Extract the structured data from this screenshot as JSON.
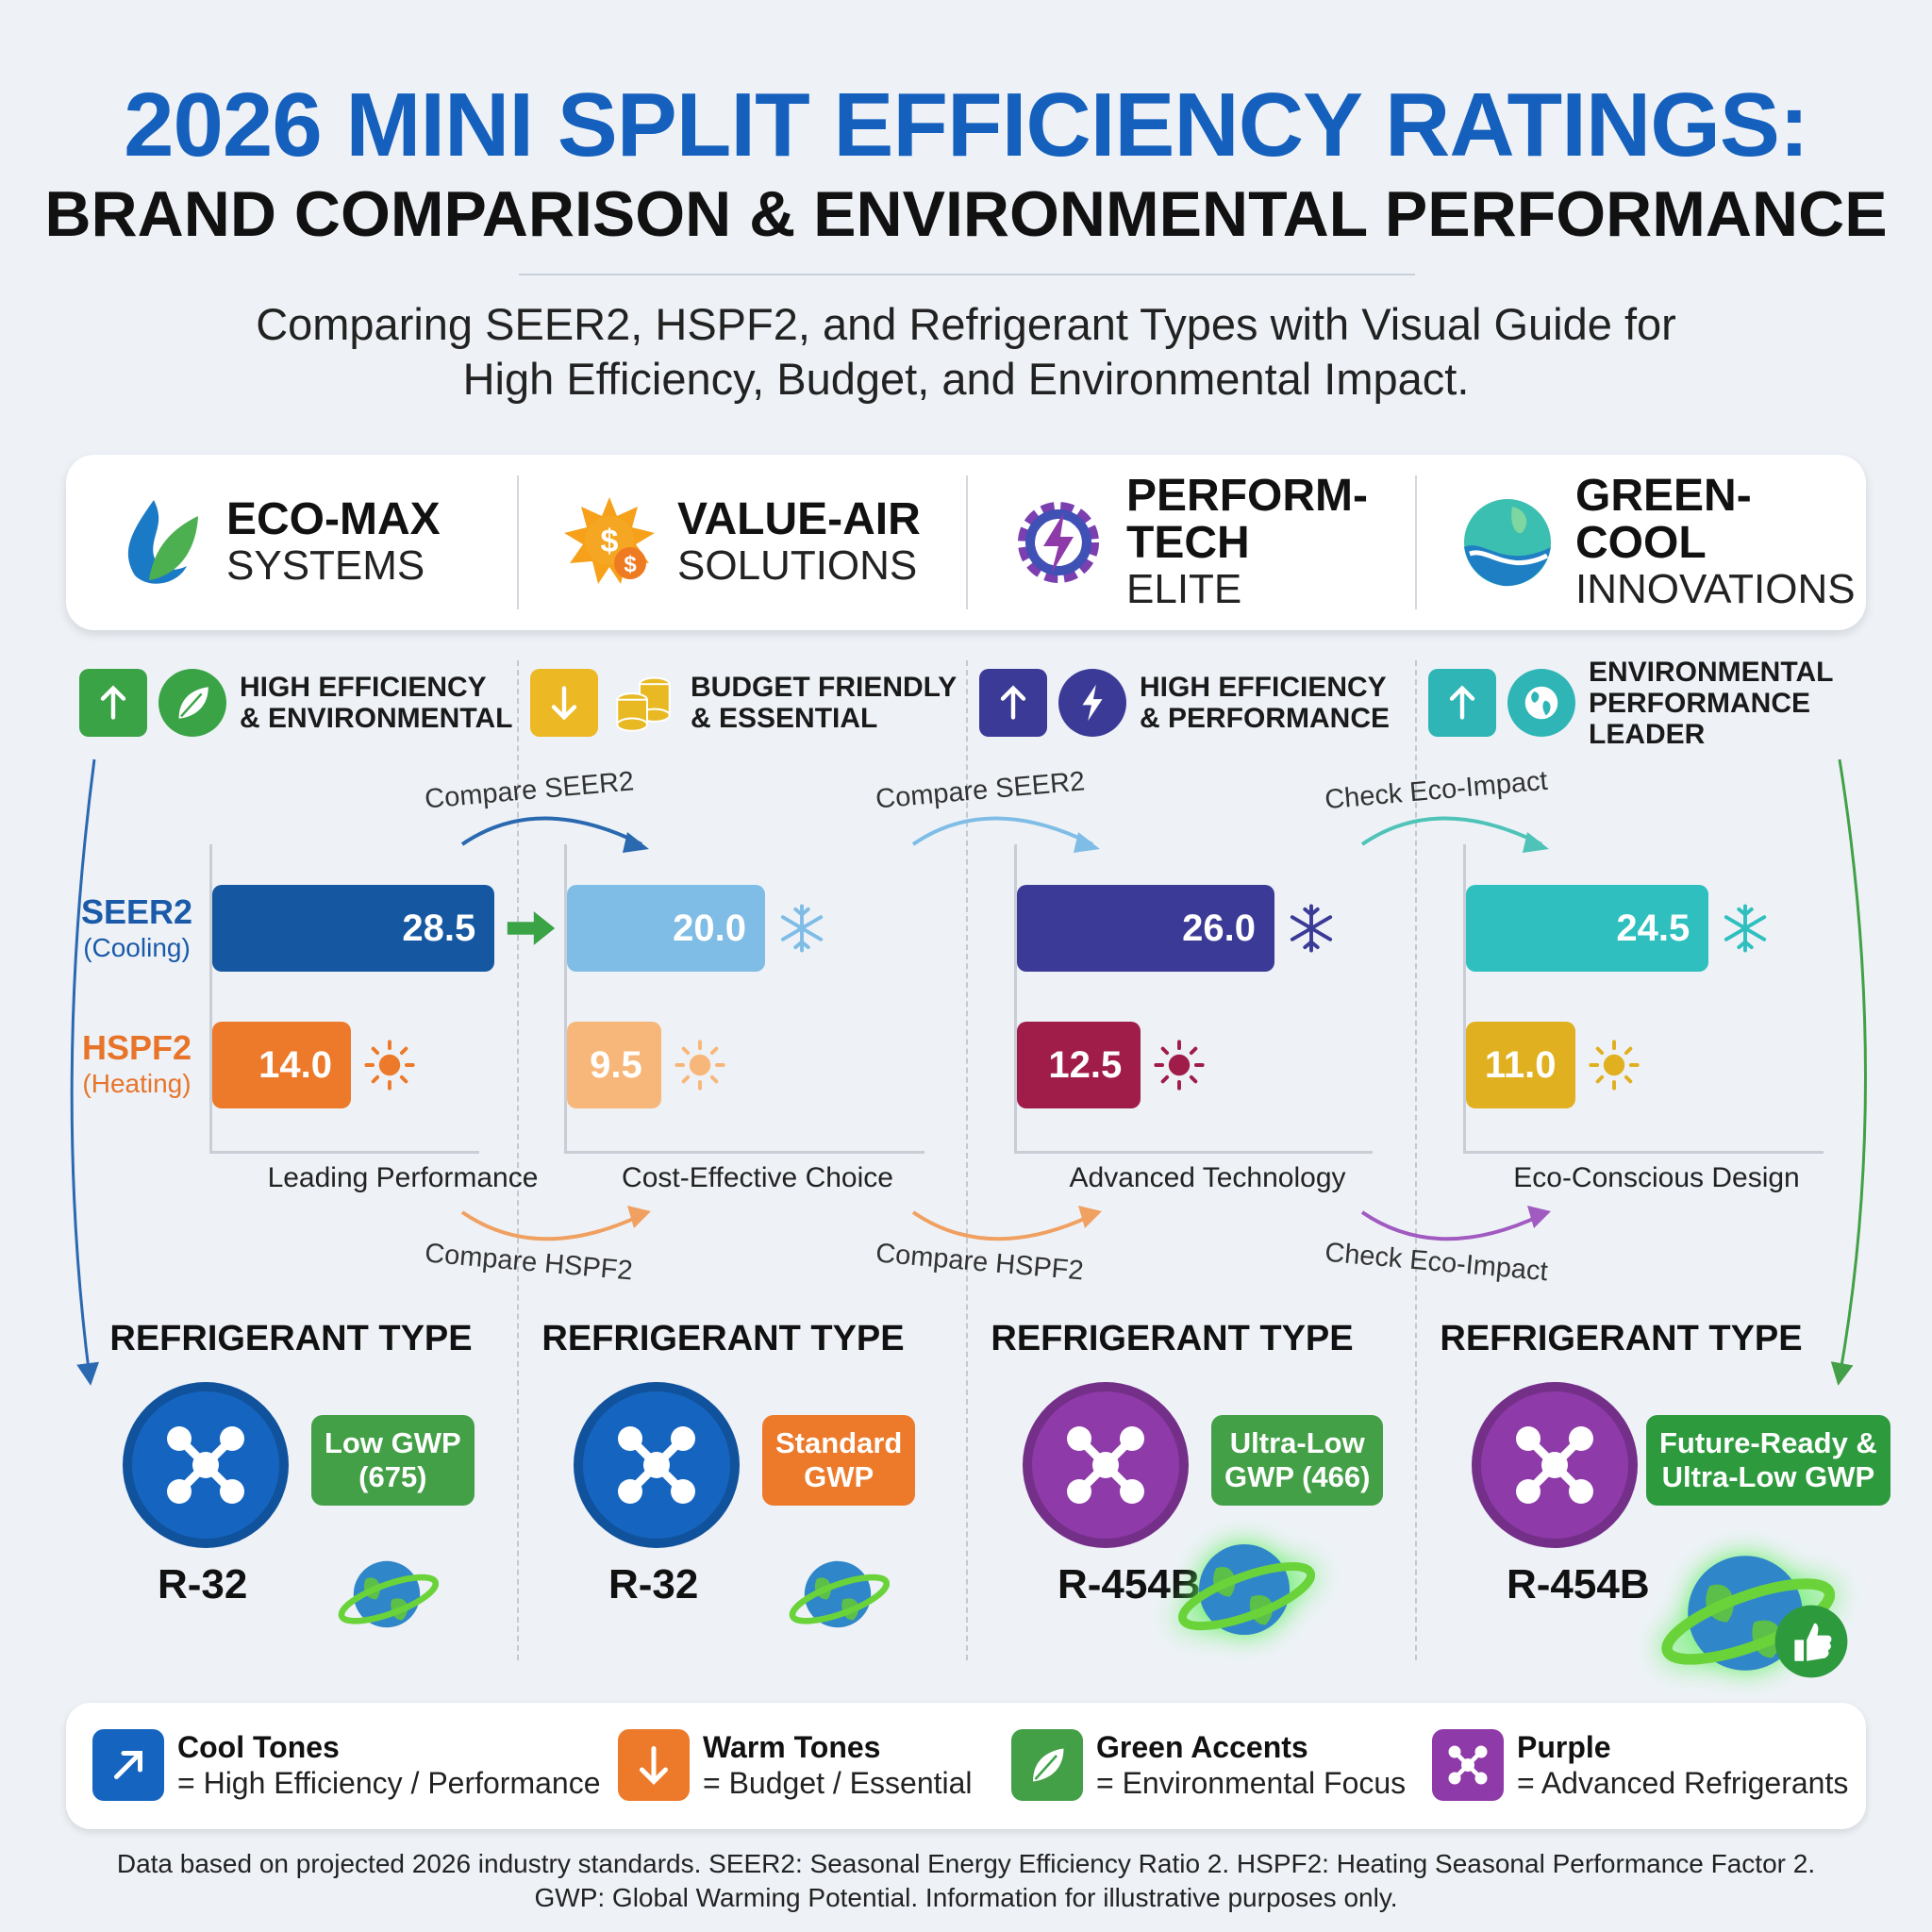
{
  "header": {
    "title": "2026 MINI SPLIT EFFICIENCY RATINGS:",
    "subtitle": "BRAND COMPARISON & ENVIRONMENTAL PERFORMANCE",
    "description_line1": "Comparing SEER2, HSPF2, and Refrigerant Types with Visual Guide for",
    "description_line2": "High Efficiency, Budget, and Environmental Impact."
  },
  "colors": {
    "title": "#1560bd",
    "eco_max_seer": "#1557a0",
    "eco_max_hspf": "#ec7a2a",
    "value_air_seer": "#7fbde6",
    "value_air_hspf": "#f7b77a",
    "perform_tech_seer": "#3b3a97",
    "perform_tech_hspf": "#a01d4a",
    "green_cool_seer": "#2fbfbf",
    "green_cool_hspf": "#e0b020"
  },
  "axis_labels": {
    "seer2": "SEER2",
    "seer2_sub": "(Cooling)",
    "hspf2": "HSPF2",
    "hspf2_sub": "(Heating)"
  },
  "refrigerant_heading": "REFRIGERANT TYPE",
  "chart_data": {
    "type": "bar",
    "orientation": "horizontal",
    "categories": [
      "ECO-MAX SYSTEMS",
      "VALUE-AIR SOLUTIONS",
      "PERFORM-TECH ELITE",
      "GREEN-COOL INNOVATIONS"
    ],
    "series": [
      {
        "name": "SEER2 (Cooling)",
        "values": [
          28.5,
          20.0,
          26.0,
          24.5
        ]
      },
      {
        "name": "HSPF2 (Heating)",
        "values": [
          14.0,
          9.5,
          12.5,
          11.0
        ]
      }
    ],
    "grid": false
  },
  "brands": [
    {
      "name1": "ECO-MAX",
      "name2": "SYSTEMS",
      "icon": "leaf-drop-icon",
      "tag": [
        "HIGH EFFICIENCY",
        "& ENVIRONMENTAL"
      ],
      "tag_icons": [
        "arrow-up-icon",
        "leaf-icon"
      ],
      "tag_color": "#3aa346",
      "seer": "28.5",
      "hspf": "14.0",
      "seer_color": "#1557a0",
      "hspf_color": "#ec7a2a",
      "seer_marker": "arrow-right-icon",
      "caption": "Leading Performance",
      "arrow_top": "Compare SEER2",
      "arrow_bottom": "Compare HSPF2",
      "refrigerant": "R-32",
      "ref_color": "#1565c0",
      "badge": [
        "Low GWP",
        "(675)"
      ],
      "badge_color": "#43a047"
    },
    {
      "name1": "VALUE-AIR",
      "name2": "SOLUTIONS",
      "icon": "sun-dollar-icon",
      "tag": [
        "BUDGET FRIENDLY",
        "& ESSENTIAL"
      ],
      "tag_icons": [
        "arrow-down-icon",
        "coins-icon"
      ],
      "tag_color": "#ecb824",
      "seer": "20.0",
      "hspf": "9.5",
      "seer_color": "#7fbde6",
      "hspf_color": "#f7b77a",
      "seer_marker": "snowflake-icon",
      "caption": "Cost-Effective Choice",
      "arrow_top": "Compare SEER2",
      "arrow_bottom": "Compare HSPF2",
      "refrigerant": "R-32",
      "ref_color": "#1565c0",
      "badge": [
        "Standard",
        "GWP"
      ],
      "badge_color": "#ec7a2a"
    },
    {
      "name1": "PERFORM-TECH",
      "name2": "ELITE",
      "icon": "gear-bolt-icon",
      "tag": [
        "HIGH EFFICIENCY",
        "& PERFORMANCE"
      ],
      "tag_icons": [
        "arrow-up-icon",
        "bolt-icon"
      ],
      "tag_color": "#3b3a97",
      "seer": "26.0",
      "hspf": "12.5",
      "seer_color": "#3b3a97",
      "hspf_color": "#a01d4a",
      "seer_marker": "snowflake-icon",
      "caption": "Advanced Technology",
      "arrow_top": "Check Eco-Impact",
      "arrow_bottom": "Check Eco-Impact",
      "refrigerant": "R-454B",
      "ref_color": "#8e3aa8",
      "badge": [
        "Ultra-Low",
        "GWP (466)"
      ],
      "badge_color": "#43a047"
    },
    {
      "name1": "GREEN-COOL",
      "name2": "INNOVATIONS",
      "icon": "globe-wave-icon",
      "tag": [
        "ENVIRONMENTAL",
        "PERFORMANCE",
        "LEADER"
      ],
      "tag_icons": [
        "arrow-up-icon",
        "globe-icon"
      ],
      "tag_color": "#2fb5b5",
      "seer": "24.5",
      "hspf": "11.0",
      "seer_color": "#2fbfbf",
      "hspf_color": "#e0b020",
      "seer_marker": "snowflake-icon",
      "caption": "Eco-Conscious Design",
      "refrigerant": "R-454B",
      "ref_color": "#8e3aa8",
      "badge": [
        "Future-Ready &",
        "Ultra-Low GWP"
      ],
      "badge_color": "#2e9a3e"
    }
  ],
  "legend": [
    {
      "title": "Cool Tones",
      "desc": "= High Efficiency / Performance",
      "color": "#1565c0",
      "icon": "arrow-up-right-icon"
    },
    {
      "title": "Warm Tones",
      "desc": "= Budget / Essential",
      "color": "#ec7a2a",
      "icon": "arrow-down-icon"
    },
    {
      "title": "Green Accents",
      "desc": "= Environmental Focus",
      "color": "#43a047",
      "icon": "leaf-icon"
    },
    {
      "title": "Purple",
      "desc": "= Advanced Refrigerants",
      "color": "#8e3aa8",
      "icon": "molecule-icon"
    }
  ],
  "footnote": {
    "line1": "Data based on projected 2026 industry standards. SEER2: Seasonal Energy Efficiency Ratio 2. HSPF2: Heating Seasonal Performance Factor 2.",
    "line2": "GWP: Global Warming Potential. Information for illustrative purposes only."
  }
}
